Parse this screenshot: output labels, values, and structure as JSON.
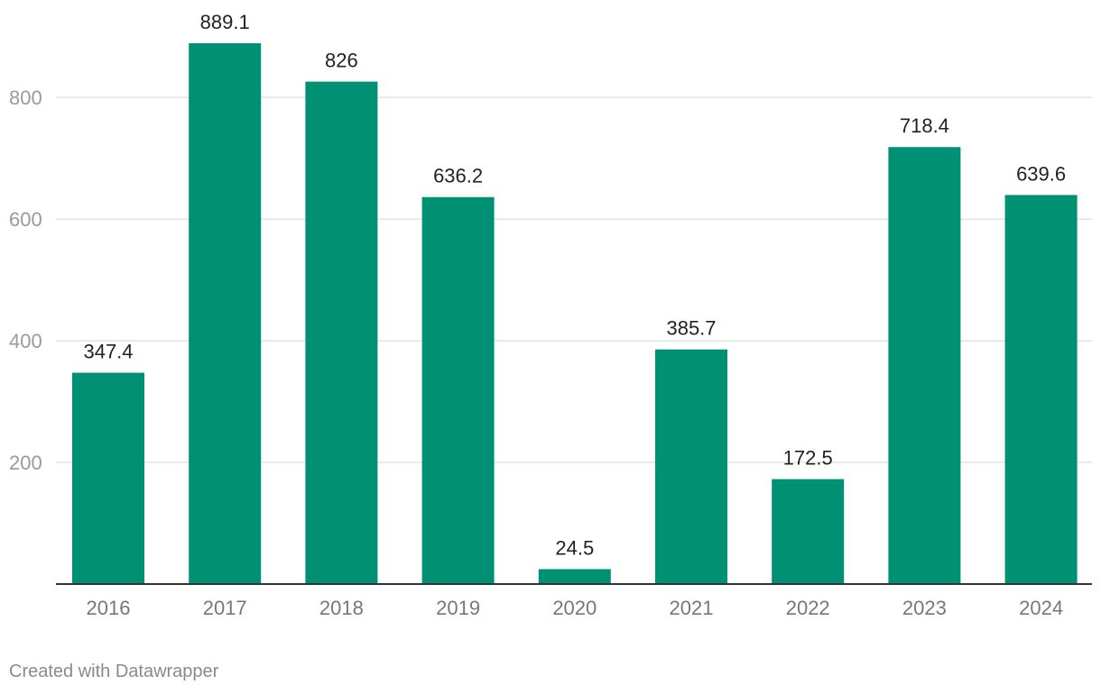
{
  "chart_data": {
    "type": "bar",
    "categories": [
      "2016",
      "2017",
      "2018",
      "2019",
      "2020",
      "2021",
      "2022",
      "2023",
      "2024"
    ],
    "values": [
      347.4,
      889.1,
      826,
      636.2,
      24.5,
      385.7,
      172.5,
      718.4,
      639.6
    ],
    "value_labels": [
      "347.4",
      "889.1",
      "826",
      "636.2",
      "24.5",
      "385.7",
      "172.5",
      "718.4",
      "639.6"
    ],
    "y_ticks": [
      200,
      400,
      600,
      800
    ],
    "y_tick_labels": [
      "200",
      "400",
      "600",
      "800"
    ],
    "ylim": [
      0,
      889.1
    ],
    "grid": true,
    "legend": "none",
    "bar_color": "#009174",
    "gridline_color": "#e3e3e3",
    "baseline_color": "#333333"
  },
  "footer": {
    "credit": "Created with Datawrapper"
  }
}
